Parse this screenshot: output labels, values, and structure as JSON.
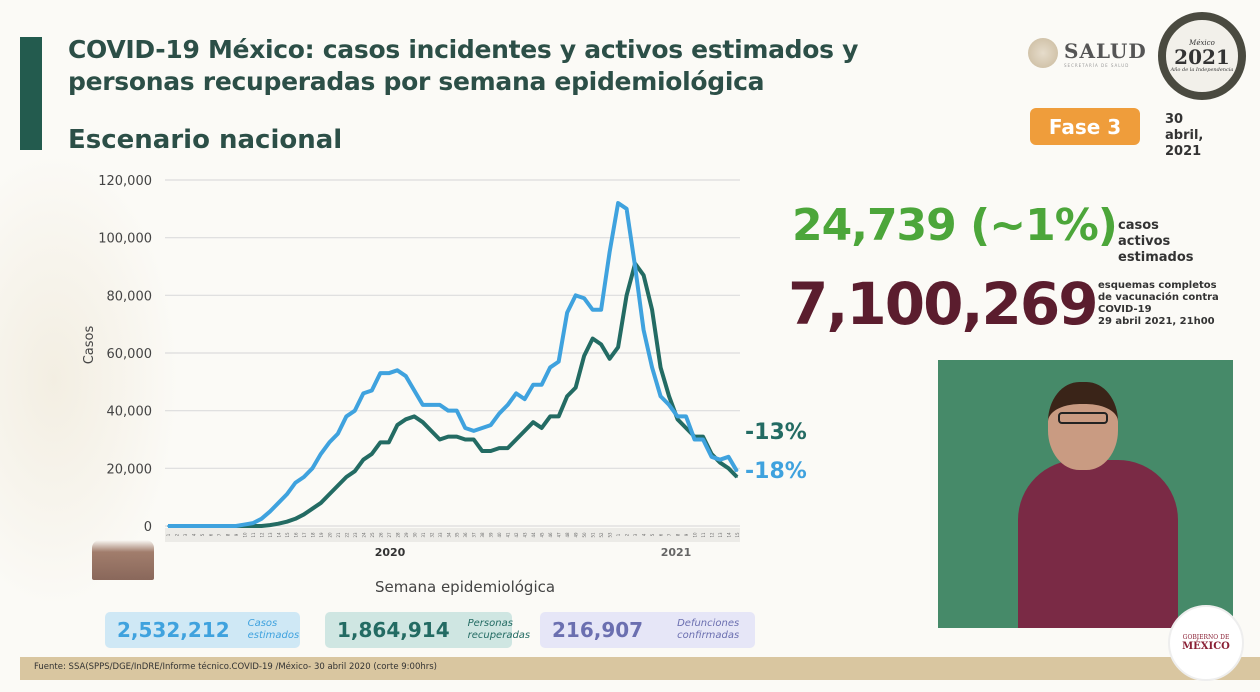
{
  "header": {
    "title_line1": "COVID-19 México: casos incidentes y activos estimados y",
    "title_line2": "personas recuperadas por semana epidemiológica",
    "subtitle": "Escenario nacional",
    "salud_logo": "SALUD",
    "salud_sub": "SECRETARÍA DE SALUD",
    "mexico2021_logo": {
      "top": "México",
      "year": "2021",
      "sub": "Año de la Independencia"
    },
    "phase": "Fase 3",
    "date": "30 abril, 2021"
  },
  "colors": {
    "title": "#2c4f47",
    "incidentes": "#3fa2de",
    "activos": "#236b63",
    "phase": "#ef9d3b",
    "active_big": "#4ca63a",
    "vaccine_big": "#5b1d2e"
  },
  "highlights": {
    "active_value": "24,739 (~1%)",
    "active_label": "casos activos estimados",
    "vaccine_value": "7,100,269",
    "vaccine_label_1": "esquemas completos",
    "vaccine_label_2": "de vacunación contra",
    "vaccine_label_3": "COVID-19",
    "vaccine_label_4": "29 abril 2021, 21h00"
  },
  "chart_data": {
    "type": "line",
    "ylabel": "Casos",
    "xlabel": "Semana epidemiológica",
    "ylim": [
      0,
      120000
    ],
    "yticks": [
      "0",
      "20,000",
      "40,000",
      "60,000",
      "80,000",
      "100,000",
      "120,000"
    ],
    "grid": true,
    "year_labels": [
      "2020",
      "2021"
    ],
    "categories": [
      "1",
      "2",
      "3",
      "4",
      "5",
      "6",
      "7",
      "8",
      "9",
      "10",
      "11",
      "12",
      "13",
      "14",
      "15",
      "16",
      "17",
      "18",
      "19",
      "20",
      "21",
      "22",
      "23",
      "24",
      "25",
      "26",
      "27",
      "28",
      "29",
      "30",
      "31",
      "32",
      "33",
      "34",
      "35",
      "36",
      "37",
      "38",
      "39",
      "40",
      "41",
      "42",
      "43",
      "44",
      "45",
      "46",
      "47",
      "48",
      "49",
      "50",
      "51",
      "52",
      "53",
      "1",
      "2",
      "3",
      "4",
      "5",
      "6",
      "7",
      "8",
      "9",
      "10",
      "11",
      "12",
      "13",
      "14",
      "15"
    ],
    "series": [
      {
        "color": "#3fa2de",
        "end_label": "-18%",
        "values": [
          0,
          0,
          0,
          0,
          0,
          0,
          0,
          0,
          0,
          500,
          1000,
          2500,
          5000,
          8000,
          11000,
          15000,
          17000,
          20000,
          25000,
          29000,
          32000,
          38000,
          40000,
          46000,
          47000,
          53000,
          53000,
          54000,
          52000,
          47000,
          42000,
          42000,
          42000,
          40000,
          40000,
          34000,
          33000,
          34000,
          35000,
          39000,
          42000,
          46000,
          44000,
          49000,
          49000,
          55000,
          57000,
          74000,
          80000,
          79000,
          75000,
          75000,
          95000,
          112000,
          110000,
          90000,
          68000,
          55000,
          45000,
          42000,
          38000,
          38000,
          30000,
          30000,
          24000,
          23000,
          24000,
          19000
        ]
      },
      {
        "color": "#236b63",
        "end_label": "-13%",
        "values": [
          0,
          0,
          0,
          0,
          0,
          0,
          0,
          0,
          0,
          0,
          0,
          0,
          300,
          800,
          1500,
          2500,
          4000,
          6000,
          8000,
          11000,
          14000,
          17000,
          19000,
          23000,
          25000,
          29000,
          29000,
          35000,
          37000,
          38000,
          36000,
          33000,
          30000,
          31000,
          31000,
          30000,
          30000,
          26000,
          26000,
          27000,
          27000,
          30000,
          33000,
          36000,
          34000,
          38000,
          38000,
          45000,
          48000,
          59000,
          65000,
          63000,
          58000,
          62000,
          80000,
          91000,
          87000,
          75000,
          55000,
          45000,
          37000,
          34000,
          31000,
          31000,
          25000,
          22000,
          20000,
          17000
        ]
      }
    ]
  },
  "stats": [
    {
      "value": "2,532,212",
      "label1": "Casos",
      "label2": "estimados"
    },
    {
      "value": "1,864,914",
      "label1": "Personas",
      "label2": "recuperadas"
    },
    {
      "value": "216,907",
      "label1": "Defunciones",
      "label2": "confirmadas"
    }
  ],
  "footer": "Fuente: SSA(SPPS/DGE/InDRE/Informe técnico.COVID-19 /México- 30 abril 2020 (corte 9:00hrs)",
  "gob_logo": {
    "a": "GOBIERNO DE",
    "b": "MÉXICO"
  }
}
